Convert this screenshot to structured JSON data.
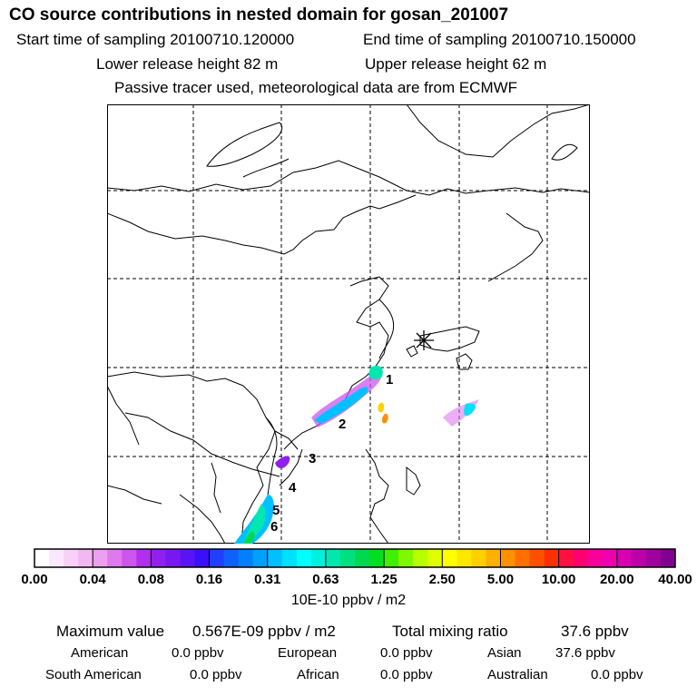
{
  "header": {
    "title": "CO  source contributions in nested domain for gosan_201007",
    "start_label": "Start time of sampling 20100710.120000",
    "end_label": "End time of sampling 20100710.150000",
    "lower_label": "Lower release height   82 m",
    "upper_label": "Upper release height   62 m",
    "note": "Passive tracer used, meteorological data are from ECMWF"
  },
  "map": {
    "source_labels": [
      "1",
      "2",
      "3",
      "4",
      "5",
      "6"
    ],
    "receptor": "gosan"
  },
  "colorbar": {
    "ticks": [
      "0.00",
      "0.04",
      "0.08",
      "0.16",
      "0.31",
      "0.63",
      "1.25",
      "2.50",
      "5.00",
      "10.00",
      "20.00",
      "40.00"
    ],
    "colors": [
      [
        "#ffffff",
        "#fce8fc",
        "#f8d0f8",
        "#f3b8f3"
      ],
      [
        "#eda0ef",
        "#e078ee",
        "#cc55ee",
        "#b030ee"
      ],
      [
        "#9020ee",
        "#7818f0",
        "#5a14f4",
        "#3a10f8"
      ],
      [
        "#2040ff",
        "#1060ff",
        "#0080ff",
        "#00a0ff"
      ],
      [
        "#00c0ff",
        "#00e0ff",
        "#00ffff",
        "#00f0e0"
      ],
      [
        "#00e8b0",
        "#00e080",
        "#00d850",
        "#00e020"
      ],
      [
        "#40f000",
        "#80f800",
        "#b8ff00",
        "#e0ff00"
      ],
      [
        "#ffff00",
        "#ffe800",
        "#ffd000",
        "#ffb000"
      ],
      [
        "#ff9000",
        "#ff7000",
        "#ff5000",
        "#ff3000"
      ],
      [
        "#ff1040",
        "#ff0070",
        "#f8009a",
        "#ee00b0"
      ],
      [
        "#d800b0",
        "#bc00a8",
        "#a0009c",
        "#820090"
      ]
    ],
    "unit": "10E-10 ppbv / m2"
  },
  "stats": {
    "max_label": "Maximum value",
    "max_value": "0.567E-09 ppbv / m2",
    "total_label": "Total mixing ratio",
    "total_value": "37.6 ppbv",
    "regions": [
      {
        "name": "American",
        "value": "0.0 ppbv"
      },
      {
        "name": "European",
        "value": "0.0 ppbv"
      },
      {
        "name": "Asian",
        "value": "37.6 ppbv"
      },
      {
        "name": "South American",
        "value": "0.0 ppbv"
      },
      {
        "name": "African",
        "value": "0.0 ppbv"
      },
      {
        "name": "Australian",
        "value": "0.0 ppbv"
      }
    ]
  }
}
